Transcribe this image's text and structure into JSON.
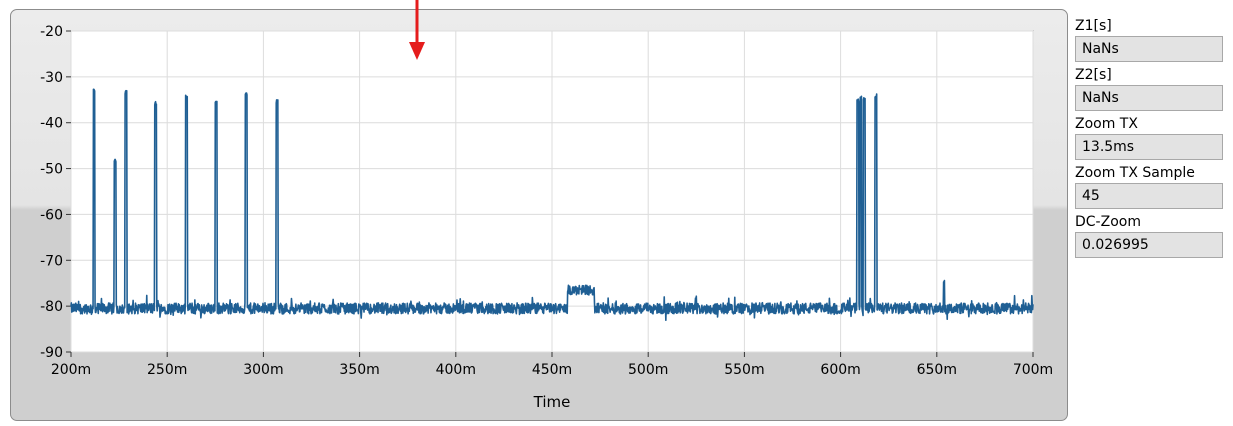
{
  "chart_data": {
    "type": "line",
    "title": "",
    "xlabel": "Time",
    "ylabel": "",
    "xlim": [
      0.2,
      0.7
    ],
    "ylim": [
      -90,
      -20
    ],
    "x_ticks": [
      0.2,
      0.25,
      0.3,
      0.35,
      0.4,
      0.45,
      0.5,
      0.55,
      0.6,
      0.65,
      0.7
    ],
    "x_tick_labels": [
      "200m",
      "250m",
      "300m",
      "350m",
      "400m",
      "450m",
      "500m",
      "550m",
      "600m",
      "650m",
      "700m"
    ],
    "y_ticks": [
      -20,
      -30,
      -40,
      -50,
      -60,
      -70,
      -80,
      -90
    ],
    "y_tick_labels": [
      "-20",
      "-30",
      "-40",
      "-50",
      "-60",
      "-70",
      "-80",
      "-90"
    ],
    "grid": true,
    "series": [
      {
        "color": "#1f5f94",
        "baseline": -80.5,
        "noise_amplitude": 1.2,
        "pulses": [
          {
            "start": 0.2115,
            "end": 0.2125,
            "peak": -33.5
          },
          {
            "start": 0.2225,
            "end": 0.2235,
            "peak": -48.5
          },
          {
            "start": 0.228,
            "end": 0.229,
            "peak": -33.8
          },
          {
            "start": 0.2435,
            "end": 0.2445,
            "peak": -36.2
          },
          {
            "start": 0.2595,
            "end": 0.2605,
            "peak": -34.8
          },
          {
            "start": 0.275,
            "end": 0.276,
            "peak": -35.8
          },
          {
            "start": 0.2905,
            "end": 0.2915,
            "peak": -34.2
          },
          {
            "start": 0.3065,
            "end": 0.3075,
            "peak": -35.8
          },
          {
            "start": 0.6085,
            "end": 0.6095,
            "peak": -35.5
          },
          {
            "start": 0.6102,
            "end": 0.611,
            "peak": -35.0
          },
          {
            "start": 0.6118,
            "end": 0.6128,
            "peak": -35.2
          },
          {
            "start": 0.6178,
            "end": 0.6188,
            "peak": -34.5
          },
          {
            "start": 0.6535,
            "end": 0.654,
            "peak": -75.0
          }
        ],
        "bumps": [
          {
            "start": 0.458,
            "end": 0.472,
            "level": -76.5
          }
        ]
      }
    ],
    "annotation_arrow_color": "#e51c1c"
  },
  "indicators": [
    {
      "label": "Z1[s]",
      "value": "NaNs"
    },
    {
      "label": "Z2[s]",
      "value": "NaNs"
    },
    {
      "label": "Zoom TX",
      "value": "13.5ms"
    },
    {
      "label": "Zoom TX Sample",
      "value": "45"
    },
    {
      "label": "DC-Zoom",
      "value": "0.026995"
    }
  ]
}
